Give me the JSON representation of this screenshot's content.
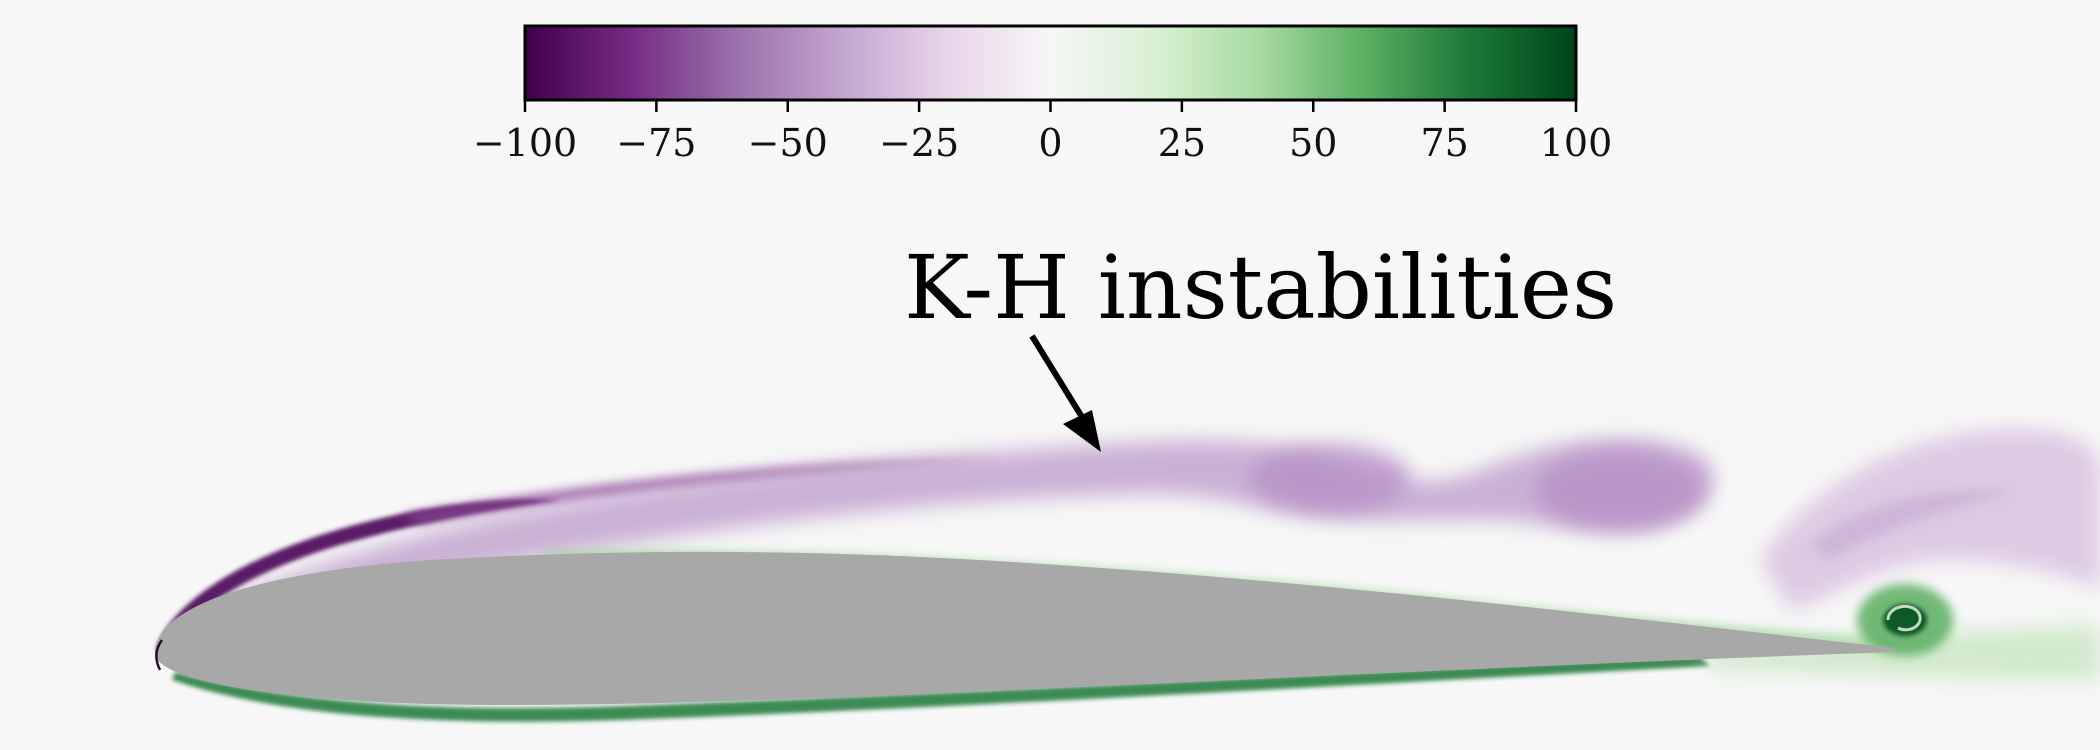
{
  "colorbar": {
    "min": -100,
    "max": 100,
    "ticks": [
      {
        "value": -100,
        "label": "−100"
      },
      {
        "value": -75,
        "label": "−75"
      },
      {
        "value": -50,
        "label": "−50"
      },
      {
        "value": -25,
        "label": "−25"
      },
      {
        "value": 0,
        "label": "0"
      },
      {
        "value": 25,
        "label": "25"
      },
      {
        "value": 50,
        "label": "50"
      },
      {
        "value": 75,
        "label": "75"
      },
      {
        "value": 100,
        "label": "100"
      }
    ],
    "colormap": [
      "#40004b",
      "#762a83",
      "#9970ab",
      "#c2a5cf",
      "#e7d4e8",
      "#f7f7f7",
      "#d9f0d3",
      "#a6dba0",
      "#5aae61",
      "#1b7837",
      "#00441b"
    ]
  },
  "annotation": {
    "text": "K-H instabilities",
    "arrow": "arrow-down-right"
  },
  "colors": {
    "background": "#f7f7f7",
    "airfoil": "#a8a8a8"
  }
}
